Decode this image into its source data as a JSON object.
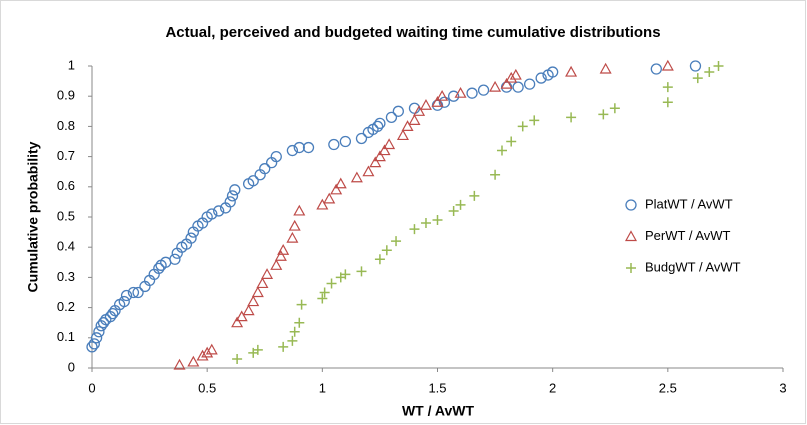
{
  "chart_data": {
    "type": "scatter",
    "title": "Actual, perceived and budgeted waiting time cumulative distributions",
    "x_label": "WT / AvWT",
    "y_label": "Cumulative probability",
    "xlim": [
      0,
      3
    ],
    "xticks": [
      0,
      0.5,
      1,
      1.5,
      2,
      2.5,
      3
    ],
    "ylim": [
      0,
      1
    ],
    "yticks": [
      0,
      0.1,
      0.2,
      0.3,
      0.4,
      0.5,
      0.6,
      0.7,
      0.8,
      0.9,
      1
    ],
    "grid": false,
    "legend": "right",
    "series": [
      {
        "name": "PlatWT / AvWT",
        "color": "#4a7ebb",
        "marker": "circle",
        "x": [
          0.0,
          0.01,
          0.02,
          0.03,
          0.04,
          0.05,
          0.06,
          0.08,
          0.09,
          0.1,
          0.12,
          0.14,
          0.15,
          0.18,
          0.2,
          0.23,
          0.25,
          0.27,
          0.29,
          0.3,
          0.32,
          0.36,
          0.37,
          0.39,
          0.41,
          0.43,
          0.44,
          0.46,
          0.48,
          0.5,
          0.52,
          0.55,
          0.58,
          0.6,
          0.61,
          0.62,
          0.68,
          0.7,
          0.73,
          0.75,
          0.78,
          0.8,
          0.87,
          0.9,
          0.94,
          1.05,
          1.1,
          1.17,
          1.2,
          1.22,
          1.24,
          1.25,
          1.3,
          1.33,
          1.4,
          1.5,
          1.53,
          1.57,
          1.65,
          1.7,
          1.8,
          1.85,
          1.9,
          1.95,
          1.98,
          2.0,
          2.45,
          2.62
        ],
        "values": [
          0.07,
          0.08,
          0.1,
          0.12,
          0.14,
          0.15,
          0.16,
          0.17,
          0.18,
          0.19,
          0.21,
          0.22,
          0.24,
          0.25,
          0.25,
          0.27,
          0.29,
          0.31,
          0.33,
          0.34,
          0.35,
          0.36,
          0.38,
          0.4,
          0.41,
          0.43,
          0.45,
          0.47,
          0.48,
          0.5,
          0.51,
          0.52,
          0.53,
          0.55,
          0.57,
          0.59,
          0.61,
          0.62,
          0.64,
          0.66,
          0.68,
          0.7,
          0.72,
          0.73,
          0.73,
          0.74,
          0.75,
          0.76,
          0.78,
          0.79,
          0.8,
          0.81,
          0.83,
          0.85,
          0.86,
          0.87,
          0.88,
          0.9,
          0.91,
          0.92,
          0.93,
          0.93,
          0.94,
          0.96,
          0.97,
          0.98,
          0.99,
          1.0
        ]
      },
      {
        "name": "PerWT / AvWT",
        "color": "#be4b48",
        "marker": "triangle",
        "x": [
          0.38,
          0.44,
          0.48,
          0.5,
          0.52,
          0.63,
          0.65,
          0.68,
          0.7,
          0.72,
          0.74,
          0.76,
          0.8,
          0.82,
          0.83,
          0.87,
          0.88,
          0.9,
          1.0,
          1.03,
          1.06,
          1.08,
          1.15,
          1.2,
          1.23,
          1.25,
          1.27,
          1.29,
          1.35,
          1.37,
          1.4,
          1.42,
          1.45,
          1.5,
          1.52,
          1.6,
          1.75,
          1.8,
          1.82,
          1.84,
          2.08,
          2.23,
          2.5
        ],
        "values": [
          0.01,
          0.02,
          0.04,
          0.05,
          0.06,
          0.15,
          0.17,
          0.19,
          0.22,
          0.25,
          0.28,
          0.31,
          0.34,
          0.37,
          0.39,
          0.43,
          0.47,
          0.52,
          0.54,
          0.56,
          0.59,
          0.61,
          0.63,
          0.65,
          0.68,
          0.7,
          0.72,
          0.74,
          0.77,
          0.8,
          0.82,
          0.85,
          0.87,
          0.88,
          0.9,
          0.91,
          0.93,
          0.94,
          0.96,
          0.97,
          0.98,
          0.99,
          1.0
        ]
      },
      {
        "name": "BudgWT / AvWT",
        "color": "#98b954",
        "marker": "plus",
        "x": [
          0.63,
          0.7,
          0.72,
          0.83,
          0.87,
          0.88,
          0.9,
          0.91,
          1.0,
          1.01,
          1.04,
          1.08,
          1.1,
          1.17,
          1.25,
          1.28,
          1.32,
          1.4,
          1.45,
          1.5,
          1.57,
          1.6,
          1.66,
          1.75,
          1.78,
          1.82,
          1.87,
          1.92,
          2.08,
          2.22,
          2.27,
          2.5,
          2.5,
          2.63,
          2.68,
          2.72
        ],
        "values": [
          0.03,
          0.05,
          0.06,
          0.07,
          0.09,
          0.12,
          0.15,
          0.21,
          0.23,
          0.25,
          0.28,
          0.3,
          0.31,
          0.32,
          0.36,
          0.39,
          0.42,
          0.46,
          0.48,
          0.49,
          0.52,
          0.54,
          0.57,
          0.64,
          0.72,
          0.75,
          0.8,
          0.82,
          0.83,
          0.84,
          0.86,
          0.88,
          0.93,
          0.96,
          0.98,
          1.0
        ]
      }
    ]
  }
}
